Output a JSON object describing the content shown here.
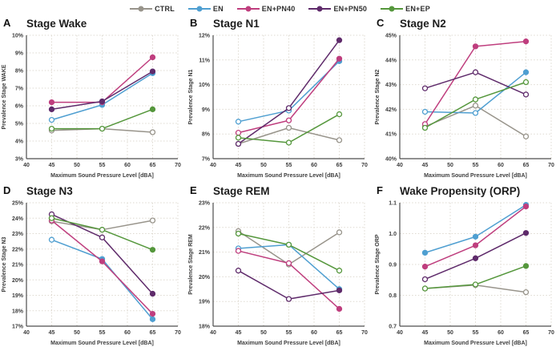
{
  "legend": [
    {
      "name": "CTRL",
      "color": "#98948b"
    },
    {
      "name": "EN",
      "color": "#4f9fd1"
    },
    {
      "name": "EN+PN40",
      "color": "#bf3e7e"
    },
    {
      "name": "EN+PN50",
      "color": "#5f2b6b"
    },
    {
      "name": "EN+EP",
      "color": "#55973c"
    }
  ],
  "chart_data": {
    "type": "line",
    "x": [
      45,
      55,
      65
    ],
    "xlim": [
      40,
      70
    ],
    "xticks": [
      40,
      45,
      50,
      55,
      60,
      65,
      70
    ],
    "xlabel": "Maximum Sound Pressure Level [dBA]",
    "grid": "dotted",
    "legend_position": "top-center",
    "panels": [
      {
        "letter": "A",
        "title": "Stage Wake",
        "ylabel": "Prevalence Stage WAKE",
        "ylim": [
          3,
          10
        ],
        "ytick_step": 1,
        "ytick_format": "percent",
        "series": [
          {
            "name": "CTRL",
            "values": [
              4.6,
              4.7,
              4.5
            ],
            "filled": [
              0,
              0,
              0
            ]
          },
          {
            "name": "EN",
            "values": [
              5.2,
              6.05,
              7.85
            ],
            "filled": [
              0,
              1,
              1
            ]
          },
          {
            "name": "EN+PN40",
            "values": [
              6.2,
              6.2,
              8.75
            ],
            "filled": [
              1,
              1,
              1
            ]
          },
          {
            "name": "EN+PN50",
            "values": [
              5.8,
              6.25,
              7.95
            ],
            "filled": [
              1,
              1,
              1
            ]
          },
          {
            "name": "EN+EP",
            "values": [
              4.7,
              4.7,
              5.8
            ],
            "filled": [
              0,
              0,
              1
            ]
          }
        ]
      },
      {
        "letter": "B",
        "title": "Stage N1",
        "ylabel": "Prevalence Stage N1",
        "ylim": [
          7,
          12
        ],
        "ytick_step": 1,
        "ytick_format": "percent",
        "series": [
          {
            "name": "CTRL",
            "values": [
              7.6,
              8.25,
              7.75
            ],
            "filled": [
              0,
              0,
              0
            ]
          },
          {
            "name": "EN",
            "values": [
              8.5,
              8.95,
              10.95
            ],
            "filled": [
              0,
              0,
              1
            ]
          },
          {
            "name": "EN+PN40",
            "values": [
              8.05,
              8.55,
              11.05
            ],
            "filled": [
              0,
              0,
              1
            ]
          },
          {
            "name": "EN+PN50",
            "values": [
              7.6,
              9.05,
              11.8
            ],
            "filled": [
              0,
              0,
              1
            ]
          },
          {
            "name": "EN+EP",
            "values": [
              7.85,
              7.65,
              8.8
            ],
            "filled": [
              0,
              0,
              0
            ]
          }
        ]
      },
      {
        "letter": "C",
        "title": "Stage N2",
        "ylabel": "Prevalence Stage N2",
        "ylim": [
          40,
          45
        ],
        "ytick_step": 1,
        "ytick_format": "percent",
        "series": [
          {
            "name": "CTRL",
            "values": [
              41.3,
              42.15,
              40.9
            ],
            "filled": [
              0,
              0,
              0
            ]
          },
          {
            "name": "EN",
            "values": [
              41.9,
              41.85,
              43.5
            ],
            "filled": [
              0,
              0,
              1
            ]
          },
          {
            "name": "EN+PN40",
            "values": [
              41.4,
              44.55,
              44.75
            ],
            "filled": [
              0,
              1,
              1
            ]
          },
          {
            "name": "EN+PN50",
            "values": [
              42.85,
              43.5,
              42.6
            ],
            "filled": [
              0,
              0,
              0
            ]
          },
          {
            "name": "EN+EP",
            "values": [
              41.25,
              42.4,
              43.1
            ],
            "filled": [
              0,
              0,
              0
            ]
          }
        ]
      },
      {
        "letter": "D",
        "title": "Stage N3",
        "ylabel": "Prevalence Stage N3",
        "ylim": [
          17,
          25
        ],
        "ytick_step": 1,
        "ytick_format": "percent",
        "series": [
          {
            "name": "CTRL",
            "values": [
              23.8,
              23.25,
              23.85
            ],
            "filled": [
              0,
              0,
              0
            ]
          },
          {
            "name": "EN",
            "values": [
              22.6,
              21.35,
              17.45
            ],
            "filled": [
              0,
              1,
              1
            ]
          },
          {
            "name": "EN+PN40",
            "values": [
              23.85,
              21.2,
              17.8
            ],
            "filled": [
              0,
              1,
              1
            ]
          },
          {
            "name": "EN+PN50",
            "values": [
              24.25,
              22.75,
              19.1
            ],
            "filled": [
              0,
              0,
              1
            ]
          },
          {
            "name": "EN+EP",
            "values": [
              24.0,
              23.25,
              21.95
            ],
            "filled": [
              0,
              0,
              1
            ]
          }
        ]
      },
      {
        "letter": "E",
        "title": "Stage REM",
        "ylabel": "Prevalence Stage REM",
        "ylim": [
          18,
          23
        ],
        "ytick_step": 1,
        "ytick_format": "percent",
        "series": [
          {
            "name": "CTRL",
            "values": [
              21.85,
              20.5,
              21.8
            ],
            "filled": [
              0,
              0,
              0
            ]
          },
          {
            "name": "EN",
            "values": [
              21.15,
              21.3,
              19.5
            ],
            "filled": [
              0,
              0,
              1
            ]
          },
          {
            "name": "EN+PN40",
            "values": [
              21.05,
              20.55,
              18.7
            ],
            "filled": [
              0,
              0,
              1
            ]
          },
          {
            "name": "EN+PN50",
            "values": [
              20.25,
              19.1,
              19.45
            ],
            "filled": [
              0,
              0,
              1
            ]
          },
          {
            "name": "EN+EP",
            "values": [
              21.75,
              21.3,
              20.25
            ],
            "filled": [
              0,
              0,
              0
            ]
          }
        ]
      },
      {
        "letter": "F",
        "title": "Wake Propensity (ORP)",
        "ylabel": "Prevalence Stage ORP",
        "ylim": [
          0.7,
          1.1
        ],
        "ytick_step": 0.1,
        "ytick_format": "decimal1",
        "series": [
          {
            "name": "CTRL",
            "values": [
              0.822,
              0.833,
              0.81
            ],
            "filled": [
              0,
              0,
              0
            ]
          },
          {
            "name": "EN",
            "values": [
              0.938,
              0.99,
              1.093
            ],
            "filled": [
              1,
              1,
              1
            ]
          },
          {
            "name": "EN+PN40",
            "values": [
              0.893,
              0.962,
              1.088
            ],
            "filled": [
              1,
              1,
              1
            ]
          },
          {
            "name": "EN+PN50",
            "values": [
              0.852,
              0.92,
              1.002
            ],
            "filled": [
              0,
              1,
              1
            ]
          },
          {
            "name": "EN+EP",
            "values": [
              0.822,
              0.835,
              0.895
            ],
            "filled": [
              0,
              0,
              1
            ]
          }
        ]
      }
    ]
  },
  "style": {
    "grid_color": "#ded9d0",
    "axis_color": "#4d4d4d",
    "tick_text_color": "#3d3d3d"
  }
}
